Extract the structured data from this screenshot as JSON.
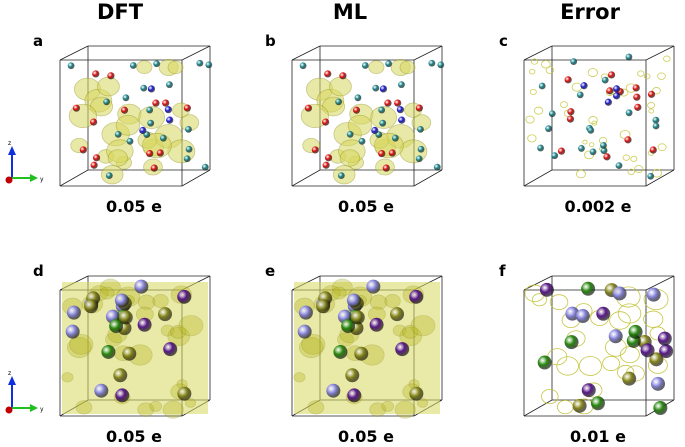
{
  "columns": [
    "DFT",
    "ML",
    "Error"
  ],
  "panels": [
    {
      "letter": "a",
      "isovalue": "0.05 e"
    },
    {
      "letter": "b",
      "isovalue": "0.05 e"
    },
    {
      "letter": "c",
      "isovalue": "0.002 e"
    },
    {
      "letter": "d",
      "isovalue": "0.05 e"
    },
    {
      "letter": "e",
      "isovalue": "0.05 e"
    },
    {
      "letter": "f",
      "isovalue": "0.01 e"
    }
  ],
  "axis_labels": {
    "z": "z",
    "y": "y"
  },
  "colors": {
    "isosurface": "#d8d860",
    "isosurface_dense": "#b5b520",
    "atom_teal": "#1e8a90",
    "atom_red": "#e01010",
    "atom_blue": "#1a1ad0",
    "atom_green": "#2a8a10",
    "atom_purple": "#5a1a8a",
    "atom_lavender": "#8a88e0",
    "atom_olive": "#8a8a20",
    "axis_z": "#1030e0",
    "axis_y": "#20c020",
    "axis_x": "#c00000"
  }
}
